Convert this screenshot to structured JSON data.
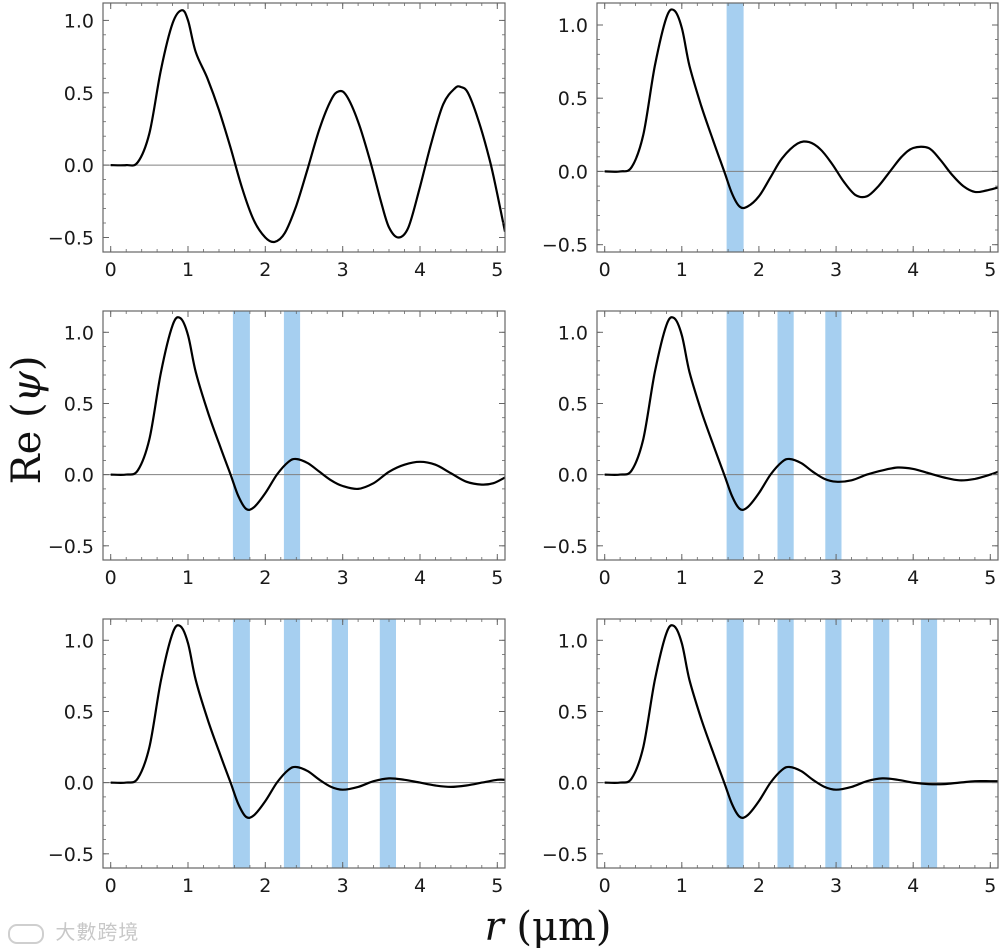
{
  "figure": {
    "ylabel_prefix": "Re",
    "ylabel_symbol": "ψ",
    "xlabel_var": "r",
    "xlabel_unit": "μm",
    "watermark": "大數跨境"
  },
  "colors": {
    "curve": "#000000",
    "zero_line": "#808080",
    "band": "#a6cff0",
    "frame": "#666666"
  },
  "chart_data": [
    {
      "type": "line",
      "panel": "top-left",
      "xlim": [
        -0.1,
        5.1
      ],
      "ylim": [
        -0.6,
        1.12
      ],
      "xticks": [
        0,
        1,
        2,
        3,
        4,
        5
      ],
      "yticks": [
        -0.5,
        0.0,
        0.5,
        1.0
      ],
      "ytick_labels": [
        "−0.5",
        "0.0",
        "0.5",
        "1.0"
      ],
      "bands": [],
      "series": [
        {
          "x": [
            0,
            0.2,
            0.35,
            0.5,
            0.65,
            0.8,
            0.92,
            1.0,
            1.1,
            1.25,
            1.4,
            1.55,
            1.7,
            1.85,
            2.0,
            2.12,
            2.25,
            2.4,
            2.55,
            2.7,
            2.85,
            2.95,
            3.05,
            3.2,
            3.35,
            3.5,
            3.6,
            3.72,
            3.85,
            4.0,
            4.15,
            4.3,
            4.45,
            4.53,
            4.62,
            4.75,
            4.9,
            5.0,
            5.1
          ],
          "y": [
            0,
            0,
            0.02,
            0.22,
            0.66,
            0.98,
            1.07,
            1.0,
            0.78,
            0.6,
            0.38,
            0.12,
            -0.16,
            -0.38,
            -0.5,
            -0.53,
            -0.47,
            -0.28,
            -0.02,
            0.25,
            0.45,
            0.51,
            0.48,
            0.3,
            0.04,
            -0.26,
            -0.43,
            -0.5,
            -0.43,
            -0.15,
            0.16,
            0.42,
            0.53,
            0.54,
            0.5,
            0.32,
            0.04,
            -0.2,
            -0.46
          ]
        }
      ]
    },
    {
      "type": "line",
      "panel": "top-right",
      "xlim": [
        -0.1,
        5.1
      ],
      "ylim": [
        -0.55,
        1.15
      ],
      "xticks": [
        0,
        1,
        2,
        3,
        4,
        5
      ],
      "yticks": [
        -0.5,
        0.0,
        0.5,
        1.0
      ],
      "ytick_labels": [
        "−0.5",
        "0.0",
        "0.5",
        "1.0"
      ],
      "bands": [
        [
          1.58,
          1.8
        ]
      ],
      "series": [
        {
          "x": [
            0,
            0.2,
            0.35,
            0.5,
            0.65,
            0.8,
            0.9,
            1.0,
            1.1,
            1.25,
            1.4,
            1.55,
            1.65,
            1.75,
            1.85,
            2.0,
            2.15,
            2.3,
            2.5,
            2.65,
            2.8,
            2.95,
            3.1,
            3.25,
            3.4,
            3.55,
            3.7,
            3.85,
            4.0,
            4.2,
            4.35,
            4.5,
            4.65,
            4.8,
            4.95,
            5.1
          ],
          "y": [
            0,
            0,
            0.03,
            0.25,
            0.72,
            1.05,
            1.1,
            0.98,
            0.72,
            0.45,
            0.22,
            0.0,
            -0.15,
            -0.24,
            -0.24,
            -0.17,
            -0.04,
            0.09,
            0.19,
            0.2,
            0.15,
            0.05,
            -0.07,
            -0.16,
            -0.17,
            -0.1,
            0.0,
            0.1,
            0.16,
            0.16,
            0.08,
            -0.02,
            -0.1,
            -0.14,
            -0.13,
            -0.11
          ]
        }
      ]
    },
    {
      "type": "line",
      "panel": "middle-left",
      "xlim": [
        -0.1,
        5.1
      ],
      "ylim": [
        -0.6,
        1.15
      ],
      "xticks": [
        0,
        1,
        2,
        3,
        4,
        5
      ],
      "yticks": [
        -0.5,
        0.0,
        0.5,
        1.0
      ],
      "ytick_labels": [
        "−0.5",
        "0.0",
        "0.5",
        "1.0"
      ],
      "bands": [
        [
          1.58,
          1.8
        ],
        [
          2.24,
          2.45
        ]
      ],
      "series": [
        {
          "x": [
            0,
            0.2,
            0.35,
            0.5,
            0.65,
            0.8,
            0.9,
            1.0,
            1.1,
            1.25,
            1.4,
            1.55,
            1.65,
            1.75,
            1.85,
            2.0,
            2.15,
            2.3,
            2.4,
            2.55,
            2.7,
            2.85,
            3.0,
            3.2,
            3.4,
            3.6,
            3.8,
            4.0,
            4.2,
            4.4,
            4.6,
            4.8,
            4.95,
            5.1
          ],
          "y": [
            0,
            0,
            0.03,
            0.25,
            0.72,
            1.05,
            1.1,
            0.98,
            0.72,
            0.45,
            0.22,
            0.0,
            -0.15,
            -0.24,
            -0.23,
            -0.13,
            0.0,
            0.09,
            0.11,
            0.08,
            0.02,
            -0.04,
            -0.08,
            -0.1,
            -0.06,
            0.02,
            0.07,
            0.09,
            0.07,
            0.01,
            -0.05,
            -0.07,
            -0.06,
            -0.02
          ]
        }
      ]
    },
    {
      "type": "line",
      "panel": "middle-right",
      "xlim": [
        -0.1,
        5.1
      ],
      "ylim": [
        -0.6,
        1.15
      ],
      "xticks": [
        0,
        1,
        2,
        3,
        4,
        5
      ],
      "yticks": [
        -0.5,
        0.0,
        0.5,
        1.0
      ],
      "ytick_labels": [
        "−0.5",
        "0.0",
        "0.5",
        "1.0"
      ],
      "bands": [
        [
          1.58,
          1.8
        ],
        [
          2.24,
          2.45
        ],
        [
          2.86,
          3.07
        ]
      ],
      "series": [
        {
          "x": [
            0,
            0.2,
            0.35,
            0.5,
            0.65,
            0.8,
            0.9,
            1.0,
            1.1,
            1.25,
            1.4,
            1.55,
            1.65,
            1.75,
            1.85,
            2.0,
            2.15,
            2.3,
            2.4,
            2.55,
            2.7,
            2.85,
            3.0,
            3.2,
            3.4,
            3.6,
            3.8,
            4.0,
            4.2,
            4.4,
            4.6,
            4.8,
            5.0,
            5.1
          ],
          "y": [
            0,
            0,
            0.03,
            0.25,
            0.72,
            1.05,
            1.1,
            0.98,
            0.72,
            0.45,
            0.22,
            0.0,
            -0.15,
            -0.24,
            -0.23,
            -0.13,
            0.0,
            0.09,
            0.11,
            0.08,
            0.02,
            -0.03,
            -0.05,
            -0.04,
            0.0,
            0.03,
            0.05,
            0.04,
            0.01,
            -0.02,
            -0.04,
            -0.03,
            0.0,
            0.02
          ]
        }
      ]
    },
    {
      "type": "line",
      "panel": "bottom-left",
      "xlim": [
        -0.1,
        5.1
      ],
      "ylim": [
        -0.6,
        1.15
      ],
      "xticks": [
        0,
        1,
        2,
        3,
        4,
        5
      ],
      "yticks": [
        -0.5,
        0.0,
        0.5,
        1.0
      ],
      "ytick_labels": [
        "−0.5",
        "0.0",
        "0.5",
        "1.0"
      ],
      "bands": [
        [
          1.58,
          1.8
        ],
        [
          2.24,
          2.45
        ],
        [
          2.86,
          3.07
        ],
        [
          3.48,
          3.69
        ]
      ],
      "series": [
        {
          "x": [
            0,
            0.2,
            0.35,
            0.5,
            0.65,
            0.8,
            0.9,
            1.0,
            1.1,
            1.25,
            1.4,
            1.55,
            1.65,
            1.75,
            1.85,
            2.0,
            2.15,
            2.3,
            2.4,
            2.55,
            2.7,
            2.85,
            3.0,
            3.2,
            3.4,
            3.6,
            3.8,
            4.0,
            4.2,
            4.4,
            4.6,
            4.8,
            5.0,
            5.1
          ],
          "y": [
            0,
            0,
            0.03,
            0.25,
            0.72,
            1.05,
            1.1,
            0.98,
            0.72,
            0.45,
            0.22,
            0.0,
            -0.15,
            -0.24,
            -0.23,
            -0.13,
            0.0,
            0.09,
            0.11,
            0.08,
            0.02,
            -0.03,
            -0.05,
            -0.03,
            0.01,
            0.03,
            0.02,
            0.0,
            -0.02,
            -0.03,
            -0.02,
            0.0,
            0.02,
            0.02
          ]
        }
      ]
    },
    {
      "type": "line",
      "panel": "bottom-right",
      "xlim": [
        -0.1,
        5.1
      ],
      "ylim": [
        -0.6,
        1.15
      ],
      "xticks": [
        0,
        1,
        2,
        3,
        4,
        5
      ],
      "yticks": [
        -0.5,
        0.0,
        0.5,
        1.0
      ],
      "ytick_labels": [
        "−0.5",
        "0.0",
        "0.5",
        "1.0"
      ],
      "bands": [
        [
          1.58,
          1.8
        ],
        [
          2.24,
          2.45
        ],
        [
          2.86,
          3.07
        ],
        [
          3.48,
          3.69
        ],
        [
          4.1,
          4.31
        ]
      ],
      "series": [
        {
          "x": [
            0,
            0.2,
            0.35,
            0.5,
            0.65,
            0.8,
            0.9,
            1.0,
            1.1,
            1.25,
            1.4,
            1.55,
            1.65,
            1.75,
            1.85,
            2.0,
            2.15,
            2.3,
            2.4,
            2.55,
            2.7,
            2.85,
            3.0,
            3.2,
            3.4,
            3.6,
            3.8,
            4.0,
            4.2,
            4.4,
            4.6,
            4.8,
            5.0,
            5.1
          ],
          "y": [
            0,
            0,
            0.03,
            0.25,
            0.72,
            1.05,
            1.1,
            0.98,
            0.72,
            0.45,
            0.22,
            0.0,
            -0.15,
            -0.24,
            -0.23,
            -0.13,
            0.0,
            0.09,
            0.11,
            0.08,
            0.02,
            -0.03,
            -0.05,
            -0.03,
            0.01,
            0.03,
            0.02,
            0.0,
            -0.01,
            -0.01,
            0.0,
            0.01,
            0.01,
            0.01
          ]
        }
      ]
    }
  ]
}
